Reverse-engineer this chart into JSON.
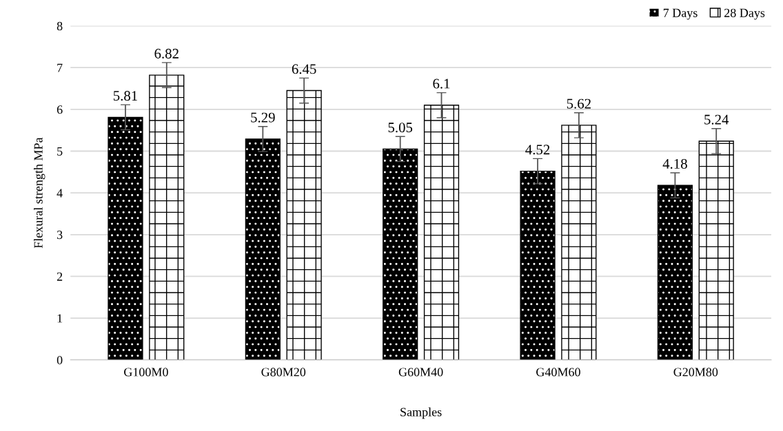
{
  "chart_data": {
    "type": "bar",
    "xlabel": "Samples",
    "ylabel": "Flexural strength MPa",
    "categories": [
      "G100M0",
      "G80M20",
      "G60M40",
      "G40M60",
      "G20M80"
    ],
    "series": [
      {
        "name": "7 Days",
        "color": "#000000",
        "values": [
          5.81,
          5.29,
          5.05,
          4.52,
          4.18
        ],
        "errors": [
          0.3,
          0.3,
          0.3,
          0.3,
          0.3
        ]
      },
      {
        "name": "28 Days",
        "color": "#ffffff",
        "values": [
          6.82,
          6.45,
          6.1,
          5.62,
          5.24
        ],
        "errors": [
          0.3,
          0.3,
          0.3,
          0.3,
          0.3
        ]
      }
    ],
    "ylim": [
      0,
      8
    ],
    "yticks": [
      0,
      1,
      2,
      3,
      4,
      5,
      6,
      7,
      8
    ],
    "grid": "y",
    "legend": "top right",
    "data_labels": true
  }
}
